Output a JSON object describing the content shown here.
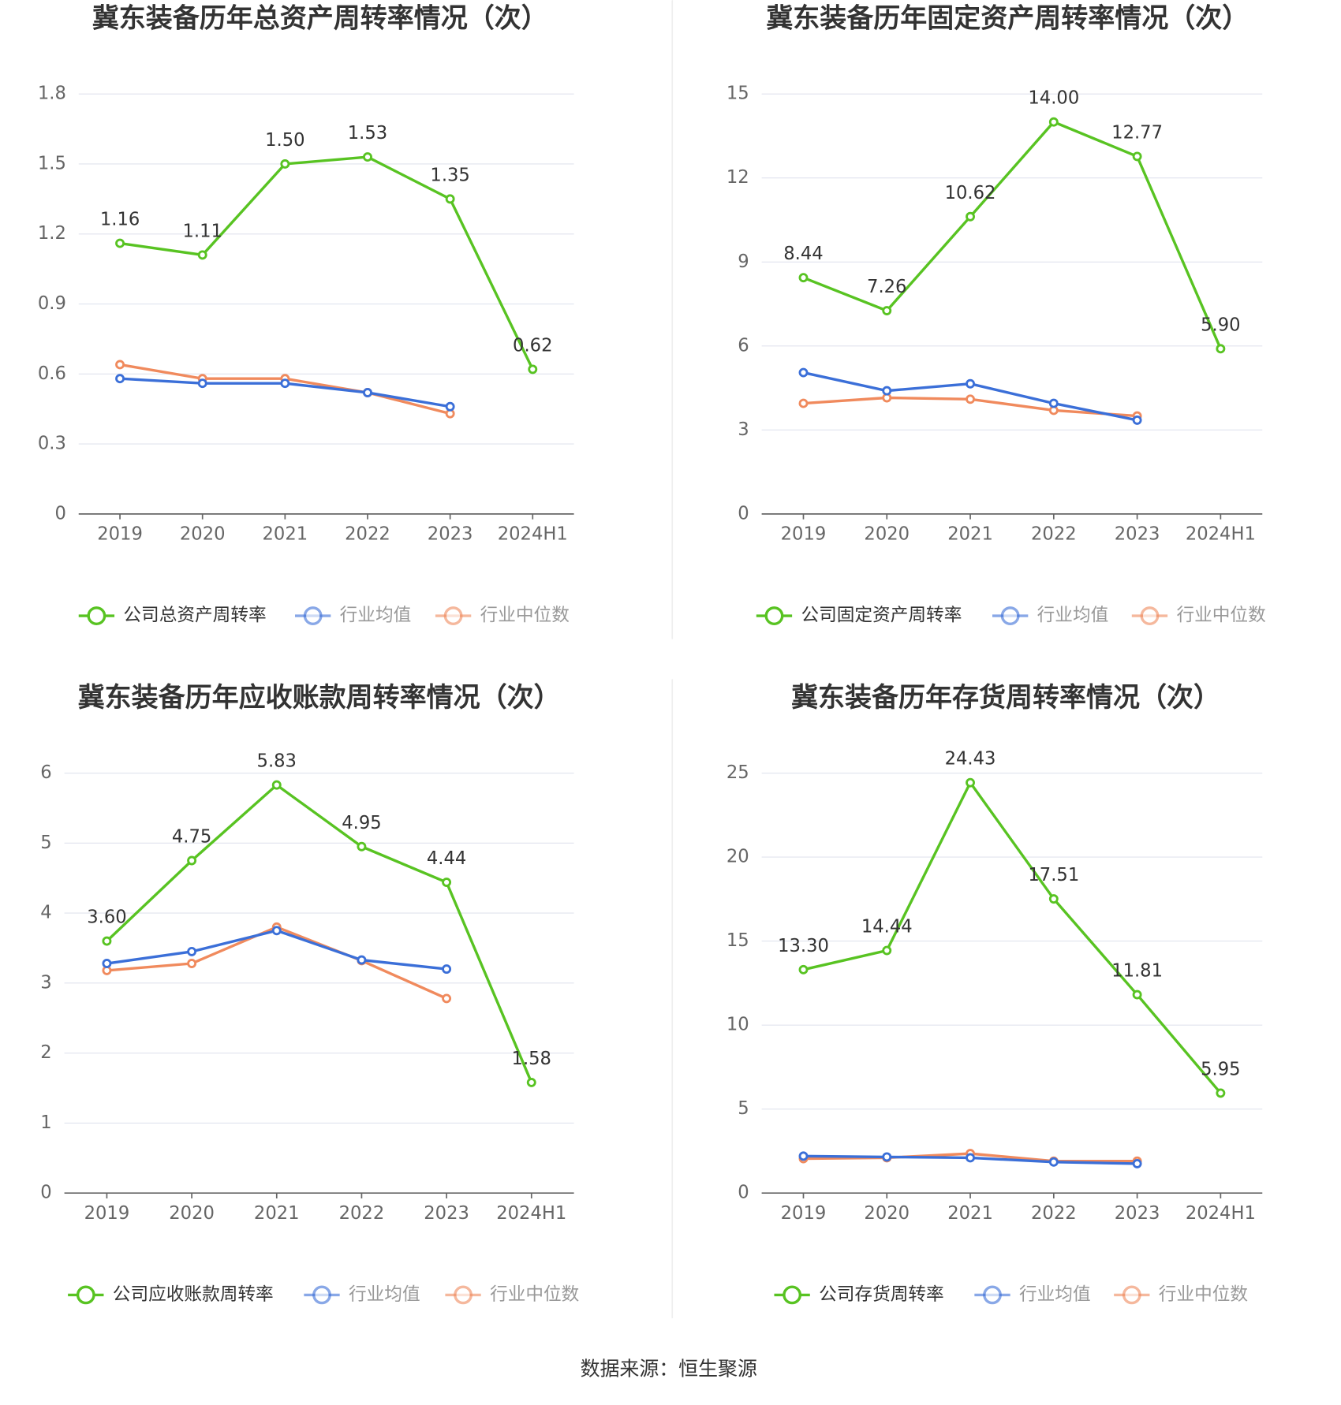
{
  "chart_data": [
    {
      "type": "line",
      "title": "冀东装备历年总资产周转率情况（次）",
      "categories": [
        "2019",
        "2020",
        "2021",
        "2022",
        "2023",
        "2024H1"
      ],
      "ylim": [
        0,
        1.8
      ],
      "yticks": [
        0,
        0.3,
        0.6,
        0.9,
        1.2,
        1.5,
        1.8
      ],
      "grid": true,
      "series": [
        {
          "name": "公司总资产周转率",
          "color": "#58c322",
          "values": [
            1.16,
            1.11,
            1.5,
            1.53,
            1.35,
            0.62
          ],
          "value_labels": [
            "1.16",
            "1.11",
            "1.50",
            "1.53",
            "1.35",
            "0.62"
          ]
        },
        {
          "name": "行业均值",
          "color": "#3b6fd8",
          "values": [
            0.58,
            0.56,
            0.56,
            0.52,
            0.46,
            null
          ]
        },
        {
          "name": "行业中位数",
          "color": "#f08a5d",
          "values": [
            0.64,
            0.58,
            0.58,
            0.52,
            0.43,
            null
          ]
        }
      ]
    },
    {
      "type": "line",
      "title": "冀东装备历年固定资产周转率情况（次）",
      "categories": [
        "2019",
        "2020",
        "2021",
        "2022",
        "2023",
        "2024H1"
      ],
      "ylim": [
        0,
        15
      ],
      "yticks": [
        0,
        3,
        6,
        9,
        12,
        15
      ],
      "grid": true,
      "series": [
        {
          "name": "公司固定资产周转率",
          "color": "#58c322",
          "values": [
            8.44,
            7.26,
            10.62,
            14.0,
            12.77,
            5.9
          ],
          "value_labels": [
            "8.44",
            "7.26",
            "10.62",
            "14.00",
            "12.77",
            "5.90"
          ]
        },
        {
          "name": "行业均值",
          "color": "#3b6fd8",
          "values": [
            5.05,
            4.4,
            4.65,
            3.95,
            3.35,
            null
          ]
        },
        {
          "name": "行业中位数",
          "color": "#f08a5d",
          "values": [
            3.95,
            4.15,
            4.1,
            3.7,
            3.5,
            null
          ]
        }
      ]
    },
    {
      "type": "line",
      "title": "冀东装备历年应收账款周转率情况（次）",
      "categories": [
        "2019",
        "2020",
        "2021",
        "2022",
        "2023",
        "2024H1"
      ],
      "ylim": [
        0,
        6
      ],
      "yticks": [
        0,
        1,
        2,
        3,
        4,
        5,
        6
      ],
      "grid": true,
      "series": [
        {
          "name": "公司应收账款周转率",
          "color": "#58c322",
          "values": [
            3.6,
            4.75,
            5.83,
            4.95,
            4.44,
            1.58
          ],
          "value_labels": [
            "3.60",
            "4.75",
            "5.83",
            "4.95",
            "4.44",
            "1.58"
          ]
        },
        {
          "name": "行业均值",
          "color": "#3b6fd8",
          "values": [
            3.28,
            3.45,
            3.75,
            3.33,
            3.2,
            null
          ]
        },
        {
          "name": "行业中位数",
          "color": "#f08a5d",
          "values": [
            3.18,
            3.28,
            3.8,
            3.32,
            2.78,
            null
          ]
        }
      ]
    },
    {
      "type": "line",
      "title": "冀东装备历年存货周转率情况（次）",
      "categories": [
        "2019",
        "2020",
        "2021",
        "2022",
        "2023",
        "2024H1"
      ],
      "ylim": [
        0,
        25
      ],
      "yticks": [
        0,
        5,
        10,
        15,
        20,
        25
      ],
      "grid": true,
      "series": [
        {
          "name": "公司存货周转率",
          "color": "#58c322",
          "values": [
            13.3,
            14.44,
            24.43,
            17.51,
            11.81,
            5.95
          ],
          "value_labels": [
            "13.30",
            "14.44",
            "24.43",
            "17.51",
            "11.81",
            "5.95"
          ]
        },
        {
          "name": "行业均值",
          "color": "#3b6fd8",
          "values": [
            2.2,
            2.15,
            2.1,
            1.85,
            1.75,
            null
          ]
        },
        {
          "name": "行业中位数",
          "color": "#f08a5d",
          "values": [
            2.05,
            2.1,
            2.35,
            1.9,
            1.9,
            null
          ]
        }
      ]
    }
  ],
  "source": "数据来源：恒生聚源"
}
